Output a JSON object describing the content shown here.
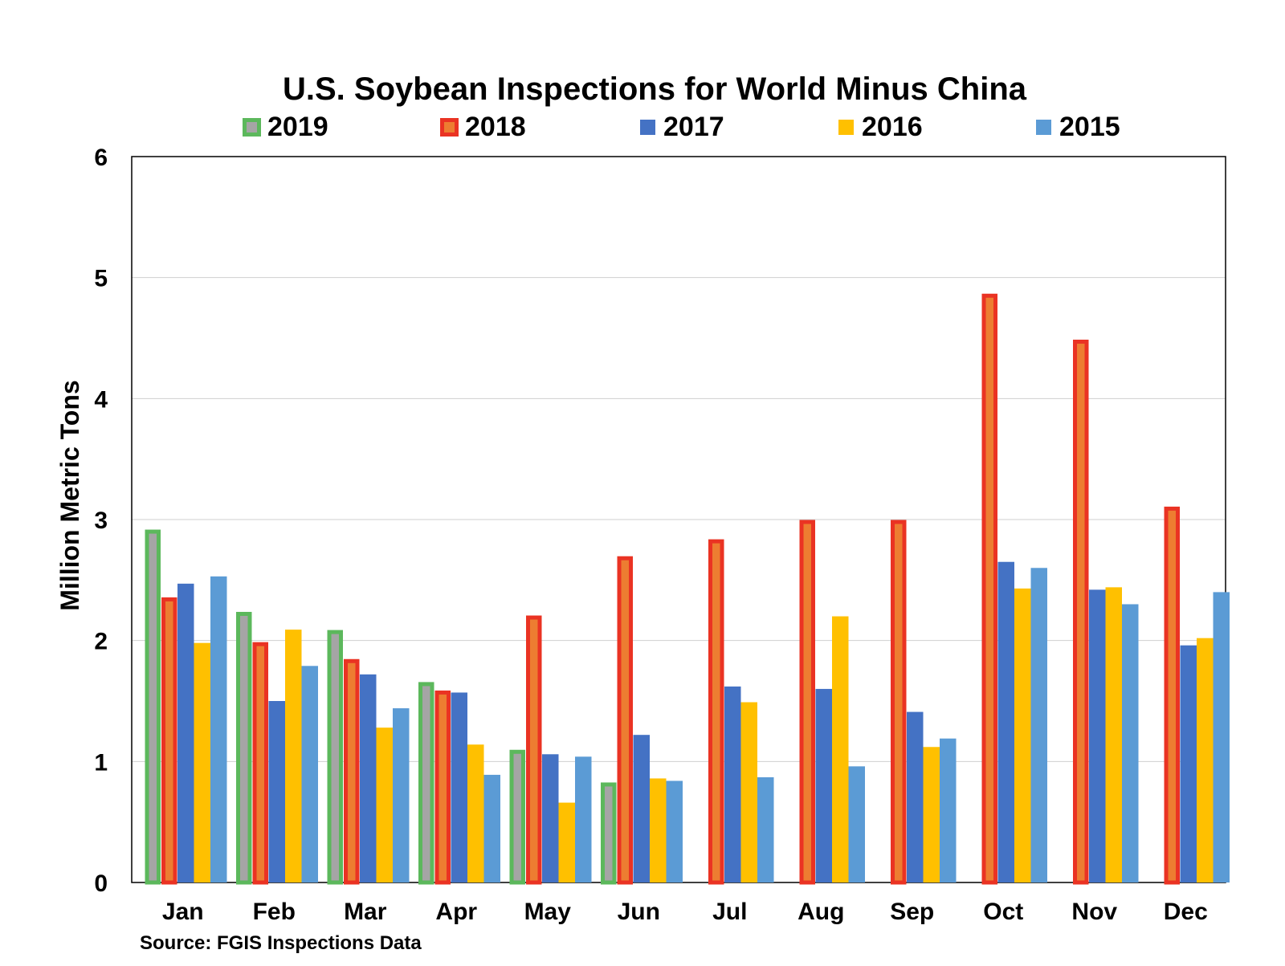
{
  "chart_data": {
    "type": "bar",
    "title": "U.S. Soybean Inspections for World Minus China",
    "ylabel": "Million Metric Tons",
    "xlabel": "",
    "source": "Source: FGIS Inspections Data",
    "ylim": [
      0,
      6
    ],
    "yticks": [
      "0",
      "1",
      "2",
      "3",
      "4",
      "5",
      "6"
    ],
    "grid": true,
    "legend_position": "top",
    "categories": [
      "Jan",
      "Feb",
      "Mar",
      "Apr",
      "May",
      "Jun",
      "Jul",
      "Aug",
      "Sep",
      "Oct",
      "Nov",
      "Dec"
    ],
    "series": [
      {
        "name": "2019",
        "fill": "#a5a5a5",
        "outline": "#5cb85c",
        "values": [
          2.92,
          2.24,
          2.09,
          1.66,
          1.1,
          0.83,
          null,
          null,
          null,
          null,
          null,
          null
        ]
      },
      {
        "name": "2018",
        "fill": "#ed7d31",
        "outline": "#ea3323",
        "values": [
          2.36,
          1.99,
          1.85,
          1.59,
          2.21,
          2.7,
          2.84,
          3.0,
          3.0,
          4.87,
          4.49,
          3.11
        ]
      },
      {
        "name": "2017",
        "fill": "#4472c4",
        "outline": null,
        "values": [
          2.47,
          1.5,
          1.72,
          1.57,
          1.06,
          1.22,
          1.62,
          1.6,
          1.41,
          2.65,
          2.42,
          1.96
        ]
      },
      {
        "name": "2016",
        "fill": "#ffc000",
        "outline": null,
        "values": [
          1.98,
          2.09,
          1.28,
          1.14,
          0.66,
          0.86,
          1.49,
          2.2,
          1.12,
          2.43,
          2.44,
          2.02
        ]
      },
      {
        "name": "2015",
        "fill": "#5b9bd5",
        "outline": null,
        "values": [
          2.53,
          1.79,
          1.44,
          0.89,
          1.04,
          0.84,
          0.87,
          0.96,
          1.19,
          2.6,
          2.3,
          2.4
        ]
      }
    ]
  }
}
